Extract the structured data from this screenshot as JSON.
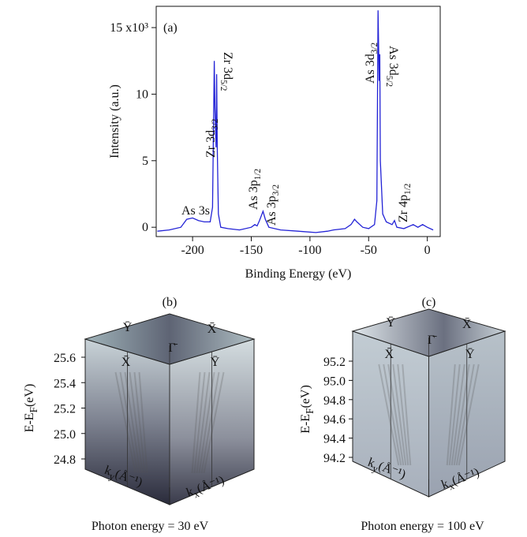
{
  "chart_data": [
    {
      "type": "line",
      "panel": "(a)",
      "color": "#2323d6",
      "xlabel": "Binding Energy (eV)",
      "ylabel": "Intensity (a.u.)",
      "xlim": [
        -231,
        11
      ],
      "ylim": [
        -0.7,
        16.6
      ],
      "xticks": [
        -200,
        -150,
        -100,
        -50,
        0
      ],
      "yticks": [
        0,
        5,
        10,
        {
          "value": 15,
          "label": "15 x10³"
        }
      ],
      "x": [
        -230,
        -220,
        -210,
        -205,
        -200,
        -195,
        -190,
        -185,
        -183,
        -182,
        -181.5,
        -181,
        -180,
        -179.5,
        -179,
        -178,
        -176,
        -170,
        -160,
        -150,
        -147,
        -145,
        -143,
        -140,
        -138,
        -135,
        -125,
        -110,
        -95,
        -85,
        -80,
        -70,
        -65,
        -62,
        -60,
        -55,
        -50,
        -45,
        -43,
        -42,
        -41,
        -40.5,
        -40,
        -38,
        -35,
        -30,
        -28,
        -26,
        -20,
        -12,
        -8,
        -4,
        0,
        5
      ],
      "values": [
        -0.3,
        -0.2,
        0.0,
        0.6,
        0.7,
        0.5,
        0.4,
        0.4,
        1.5,
        9.0,
        12.5,
        9.0,
        6.0,
        11.5,
        6.0,
        1.0,
        0.0,
        -0.1,
        -0.2,
        0.0,
        0.2,
        0.1,
        0.5,
        1.2,
        0.6,
        0.0,
        -0.2,
        -0.3,
        -0.4,
        -0.3,
        -0.2,
        -0.1,
        0.2,
        0.6,
        0.4,
        0.0,
        -0.1,
        0.2,
        2.0,
        16.3,
        11.0,
        13.0,
        5.0,
        1.0,
        0.4,
        0.2,
        0.5,
        0.0,
        -0.1,
        0.2,
        0.0,
        0.2,
        0.0,
        -0.2
      ],
      "annotations": [
        {
          "pre": "As 3s"
        },
        {
          "pre": "Zr 3d",
          "sub": "3/2"
        },
        {
          "pre": "Zr 3d",
          "sub": "5/2"
        },
        {
          "pre": "As 3p",
          "sub": "1/2"
        },
        {
          "pre": "As 3p",
          "sub": "3/2"
        },
        {
          "pre": "As 3d",
          "sub": "3/2"
        },
        {
          "pre": "As 3d",
          "sub": "5/2"
        },
        {
          "pre": "Zr 4p",
          "sub": "1/2"
        }
      ]
    },
    {
      "type": "cube",
      "panel": "(b)",
      "ylabel": {
        "pre": "E-E",
        "sub": "F",
        "post": "(eV)"
      },
      "ylim": [
        24.8,
        25.6
      ],
      "yticks": [
        25.6,
        25.4,
        25.2,
        {
          "value": 25,
          "label": "25.0"
        },
        24.8
      ],
      "points": [
        "Ȳ",
        "X̄",
        "Γ̄",
        "X̄",
        "Ȳ"
      ],
      "kx": {
        "pre": "k",
        "sub": "x",
        "post": "(Å⁻¹)"
      },
      "ky": {
        "pre": "k",
        "sub": "y",
        "post": "(Å⁻¹)"
      },
      "caption": "Photon energy = 30 eV"
    },
    {
      "type": "cube",
      "panel": "(c)",
      "ylabel": {
        "pre": "E-E",
        "sub": "F",
        "post": "(eV)"
      },
      "ylim": [
        94.2,
        95.2
      ],
      "yticks": [
        95.2,
        {
          "value": 95,
          "label": "95.0"
        },
        94.8,
        94.6,
        94.4,
        94.2
      ],
      "points": [
        "Ȳ",
        "X̄",
        "Γ̄",
        "X̄",
        "Ȳ"
      ],
      "kx": {
        "pre": "k",
        "sub": "x",
        "post": "(Å⁻¹)"
      },
      "ky": {
        "pre": "k",
        "sub": "y",
        "post": "(Å⁻¹)"
      },
      "caption": "Photon energy = 100 eV"
    }
  ]
}
